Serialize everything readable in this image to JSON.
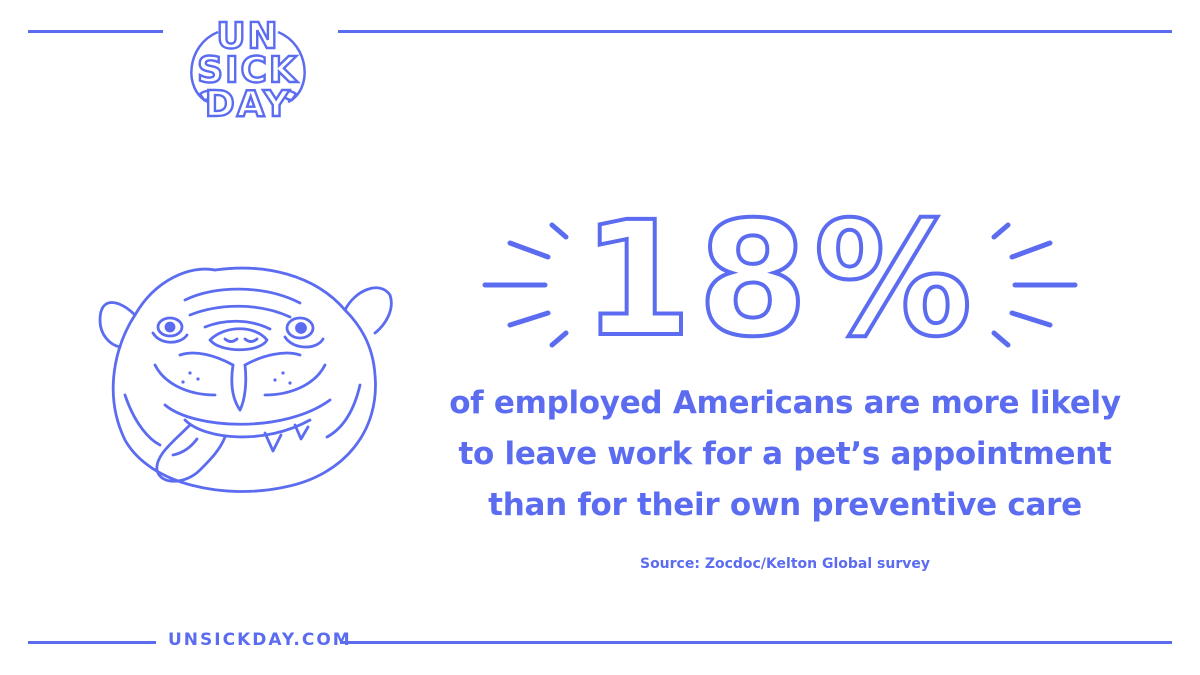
{
  "logo": {
    "line1": "UN",
    "line2": "SICK",
    "line3": "DAY"
  },
  "stat": {
    "value": "18%"
  },
  "description": [
    "of employed Americans are more likely",
    "to leave work for a pet’s appointment",
    "than for their own preventive care"
  ],
  "source": "Source: Zocdoc/Kelton Global survey",
  "footer": {
    "url": "UNSICKDAY.COM"
  },
  "illustration": {
    "icon": "bulldog-illustration"
  },
  "colors": {
    "accent": "#5b6cf0",
    "background": "#ffffff"
  }
}
